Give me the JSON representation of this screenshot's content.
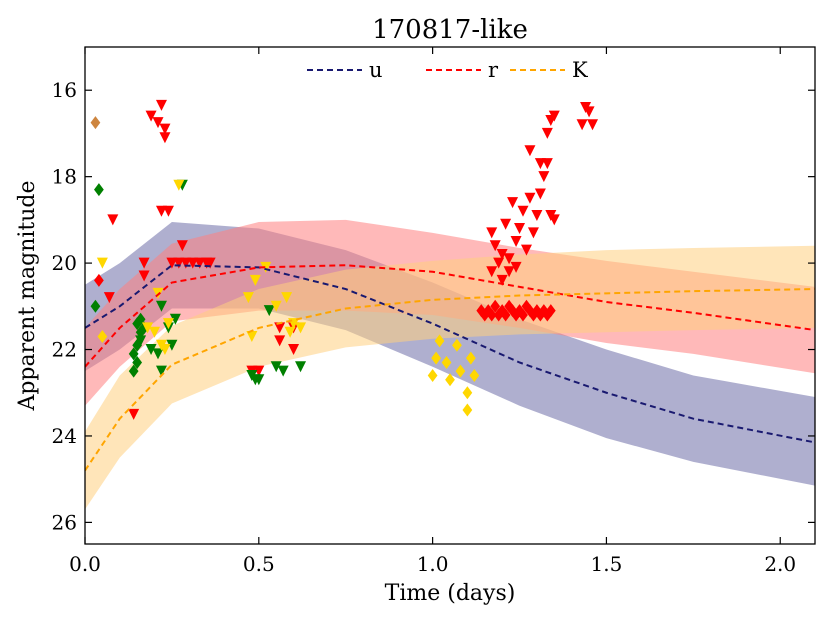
{
  "chart_data": {
    "type": "line",
    "title": "170817-like",
    "xlabel": "Time (days)",
    "ylabel": "Apparent magnitude",
    "xlim": [
      0,
      2.1
    ],
    "ylim": [
      26.5,
      15
    ],
    "xticks": [
      0.0,
      0.5,
      1.0,
      1.5,
      2.0
    ],
    "xtick_labels": [
      "0.0",
      "0.5",
      "1.0",
      "1.5",
      "2.0"
    ],
    "yticks": [
      16,
      18,
      20,
      22,
      24,
      26
    ],
    "ytick_labels": [
      "16",
      "18",
      "20",
      "22",
      "24",
      "26"
    ],
    "legend_position": "top-center",
    "series": [
      {
        "name": "u",
        "color": "#191970",
        "band_color": "#6d6ea8",
        "x": [
          0.0,
          0.1,
          0.25,
          0.5,
          0.75,
          1.0,
          1.25,
          1.5,
          1.75,
          2.1
        ],
        "y": [
          21.5,
          21.0,
          20.05,
          20.1,
          20.6,
          21.4,
          22.3,
          23.0,
          23.6,
          24.15
        ],
        "band_upper": [
          20.5,
          20.0,
          19.05,
          19.2,
          19.7,
          20.45,
          21.3,
          22.0,
          22.6,
          23.1
        ],
        "band_lower": [
          22.5,
          22.0,
          21.05,
          21.05,
          21.55,
          22.4,
          23.3,
          24.05,
          24.6,
          25.15
        ]
      },
      {
        "name": "r",
        "color": "#ff0000",
        "band_color": "#ff8080",
        "x": [
          0.0,
          0.1,
          0.25,
          0.5,
          0.75,
          1.0,
          1.25,
          1.5,
          1.75,
          2.1
        ],
        "y": [
          22.4,
          21.5,
          20.45,
          20.1,
          20.05,
          20.2,
          20.55,
          20.9,
          21.15,
          21.55
        ],
        "band_upper": [
          21.5,
          20.6,
          19.55,
          19.05,
          19.0,
          19.3,
          19.65,
          19.95,
          20.2,
          20.55
        ],
        "band_lower": [
          23.3,
          22.4,
          21.35,
          21.1,
          21.1,
          21.2,
          21.5,
          21.85,
          22.1,
          22.55
        ]
      },
      {
        "name": "K",
        "color": "#ffa500",
        "band_color": "#ffd080",
        "x": [
          0.0,
          0.1,
          0.25,
          0.5,
          0.75,
          1.0,
          1.25,
          1.5,
          1.75,
          2.1
        ],
        "y": [
          24.8,
          23.6,
          22.35,
          21.5,
          21.05,
          20.85,
          20.75,
          20.7,
          20.65,
          20.6
        ],
        "band_upper": [
          23.9,
          22.6,
          21.45,
          20.6,
          20.15,
          19.95,
          19.8,
          19.7,
          19.65,
          19.6
        ],
        "band_lower": [
          25.7,
          24.5,
          23.25,
          22.4,
          21.95,
          21.75,
          21.65,
          21.6,
          21.55,
          21.5
        ]
      }
    ],
    "observations": [
      {
        "label": "limit-red",
        "marker": "triangle-down",
        "color": "#ff0000",
        "points": [
          [
            0.08,
            19.0
          ],
          [
            0.19,
            16.6
          ],
          [
            0.22,
            16.35
          ],
          [
            0.23,
            16.9
          ],
          [
            0.23,
            17.1
          ],
          [
            0.21,
            16.75
          ],
          [
            0.22,
            18.8
          ],
          [
            0.24,
            18.8
          ],
          [
            0.17,
            20.0
          ],
          [
            0.17,
            20.3
          ],
          [
            0.28,
            19.6
          ],
          [
            0.25,
            20.0
          ],
          [
            0.27,
            20.0
          ],
          [
            0.29,
            20.0
          ],
          [
            0.31,
            20.0
          ],
          [
            0.33,
            20.0
          ],
          [
            0.35,
            20.0
          ],
          [
            0.36,
            20.0
          ],
          [
            0.07,
            20.8
          ],
          [
            0.14,
            23.5
          ],
          [
            0.48,
            22.5
          ],
          [
            0.5,
            22.5
          ],
          [
            0.56,
            21.5
          ],
          [
            0.6,
            21.5
          ],
          [
            0.56,
            21.8
          ],
          [
            0.6,
            22.0
          ],
          [
            1.17,
            19.3
          ],
          [
            1.18,
            19.6
          ],
          [
            1.19,
            20.0
          ],
          [
            1.2,
            19.8
          ],
          [
            1.21,
            19.1
          ],
          [
            1.22,
            20.2
          ],
          [
            1.24,
            19.5
          ],
          [
            1.25,
            19.2
          ],
          [
            1.26,
            18.8
          ],
          [
            1.27,
            19.7
          ],
          [
            1.28,
            18.5
          ],
          [
            1.29,
            19.3
          ],
          [
            1.3,
            18.9
          ],
          [
            1.31,
            18.4
          ],
          [
            1.32,
            18.0
          ],
          [
            1.33,
            17.7
          ],
          [
            1.34,
            18.9
          ],
          [
            1.35,
            19.0
          ],
          [
            1.23,
            18.6
          ],
          [
            1.2,
            20.4
          ],
          [
            1.31,
            17.7
          ],
          [
            1.34,
            16.7
          ],
          [
            1.35,
            16.6
          ],
          [
            1.33,
            17.0
          ],
          [
            1.44,
            16.4
          ],
          [
            1.45,
            16.5
          ],
          [
            1.46,
            16.8
          ],
          [
            1.43,
            16.8
          ],
          [
            1.28,
            17.4
          ],
          [
            1.22,
            19.9
          ],
          [
            1.17,
            20.2
          ],
          [
            1.24,
            20.1
          ]
        ]
      },
      {
        "label": "detection-red",
        "marker": "diamond",
        "color": "#ff0000",
        "points": [
          [
            0.04,
            20.4
          ],
          [
            1.14,
            21.1
          ],
          [
            1.15,
            21.2
          ],
          [
            1.16,
            21.1
          ],
          [
            1.17,
            21.2
          ],
          [
            1.18,
            21.0
          ],
          [
            1.19,
            21.2
          ],
          [
            1.2,
            21.1
          ],
          [
            1.21,
            21.2
          ],
          [
            1.22,
            21.0
          ],
          [
            1.23,
            21.1
          ],
          [
            1.24,
            21.2
          ],
          [
            1.25,
            21.1
          ],
          [
            1.26,
            21.2
          ],
          [
            1.27,
            21.0
          ],
          [
            1.28,
            21.1
          ],
          [
            1.29,
            21.2
          ],
          [
            1.3,
            21.1
          ],
          [
            1.31,
            21.2
          ],
          [
            1.32,
            21.1
          ],
          [
            1.33,
            21.2
          ],
          [
            1.34,
            21.1
          ]
        ]
      },
      {
        "label": "limit-green",
        "marker": "triangle-down",
        "color": "#008000",
        "points": [
          [
            0.28,
            18.2
          ],
          [
            0.16,
            21.8
          ],
          [
            0.19,
            22.0
          ],
          [
            0.22,
            22.5
          ],
          [
            0.26,
            21.3
          ],
          [
            0.24,
            21.5
          ],
          [
            0.25,
            21.9
          ],
          [
            0.49,
            22.7
          ],
          [
            0.5,
            22.7
          ],
          [
            0.48,
            22.6
          ],
          [
            0.53,
            21.1
          ],
          [
            0.55,
            22.4
          ],
          [
            0.57,
            22.5
          ],
          [
            0.62,
            22.4
          ],
          [
            0.21,
            22.1
          ],
          [
            0.22,
            21.0
          ]
        ]
      },
      {
        "label": "detection-green",
        "marker": "diamond",
        "color": "#008000",
        "points": [
          [
            0.04,
            18.3
          ],
          [
            0.03,
            21.0
          ],
          [
            0.15,
            21.4
          ],
          [
            0.16,
            21.6
          ],
          [
            0.15,
            21.9
          ],
          [
            0.14,
            22.1
          ],
          [
            0.15,
            22.3
          ],
          [
            0.14,
            22.5
          ],
          [
            0.16,
            21.3
          ],
          [
            0.17,
            21.5
          ]
        ]
      },
      {
        "label": "limit-gold",
        "marker": "triangle-down",
        "color": "#ffd700",
        "points": [
          [
            0.05,
            20.0
          ],
          [
            0.27,
            18.2
          ],
          [
            0.18,
            21.5
          ],
          [
            0.2,
            21.6
          ],
          [
            0.21,
            20.7
          ],
          [
            0.22,
            21.9
          ],
          [
            0.23,
            22.0
          ],
          [
            0.24,
            21.4
          ],
          [
            0.47,
            20.8
          ],
          [
            0.48,
            21.7
          ],
          [
            0.49,
            20.4
          ],
          [
            0.52,
            20.1
          ],
          [
            0.55,
            21.0
          ],
          [
            0.58,
            20.8
          ],
          [
            0.6,
            21.4
          ],
          [
            0.62,
            21.5
          ],
          [
            0.59,
            21.6
          ]
        ]
      },
      {
        "label": "detection-gold",
        "marker": "diamond",
        "color": "#ffd700",
        "points": [
          [
            0.05,
            21.7
          ],
          [
            1.0,
            22.6
          ],
          [
            1.01,
            22.2
          ],
          [
            1.02,
            21.8
          ],
          [
            1.04,
            22.3
          ],
          [
            1.05,
            22.7
          ],
          [
            1.07,
            21.9
          ],
          [
            1.08,
            22.5
          ],
          [
            1.1,
            23.0
          ],
          [
            1.1,
            23.4
          ],
          [
            1.11,
            22.2
          ],
          [
            1.12,
            22.6
          ]
        ]
      },
      {
        "label": "detection-brown",
        "marker": "diamond",
        "color": "#cd853f",
        "points": [
          [
            0.03,
            16.75
          ]
        ]
      }
    ]
  }
}
